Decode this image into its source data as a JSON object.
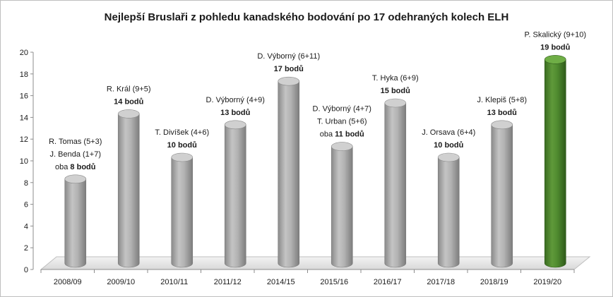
{
  "chart_data": {
    "type": "bar",
    "title": "Nejlepší Bruslaři z pohledu kanadského bodování po 17 odehraných kolech ELH",
    "xlabel": "",
    "ylabel": "",
    "ylim": [
      0,
      20
    ],
    "yticks": [
      "0",
      "2",
      "4",
      "6",
      "8",
      "10",
      "12",
      "14",
      "16",
      "18",
      "20"
    ],
    "categories": [
      "2008/09",
      "2009/10",
      "2010/11",
      "2011/12",
      "2014/15",
      "2015/16",
      "2016/17",
      "2017/18",
      "2018/19",
      "2019/20"
    ],
    "values": [
      8,
      14,
      10,
      13,
      17,
      11,
      15,
      10,
      13,
      19
    ],
    "colors": {
      "default": "#a6a6a6",
      "highlight": "#4f8a2f"
    },
    "highlight_index": 9,
    "grid": false,
    "data_labels": [
      {
        "lines": [
          {
            "parts": [
              {
                "t": "R. Tomas (5+3)",
                "b": false
              }
            ]
          },
          {
            "parts": [
              {
                "t": "J. Benda (1+7)",
                "b": false
              }
            ]
          },
          {
            "parts": [
              {
                "t": "oba ",
                "b": false
              },
              {
                "t": "8 bodů",
                "b": true
              }
            ]
          }
        ]
      },
      {
        "lines": [
          {
            "parts": [
              {
                "t": "R. Král (9+5)",
                "b": false
              }
            ]
          },
          {
            "parts": [
              {
                "t": "14 bodů",
                "b": true
              }
            ]
          }
        ]
      },
      {
        "lines": [
          {
            "parts": [
              {
                "t": "T. Divíšek (4+6)",
                "b": false
              }
            ]
          },
          {
            "parts": [
              {
                "t": "10 bodů",
                "b": true
              }
            ]
          }
        ]
      },
      {
        "lines": [
          {
            "parts": [
              {
                "t": "D. Výborný  (4+9)",
                "b": false
              }
            ]
          },
          {
            "parts": [
              {
                "t": "13 bodů",
                "b": true
              }
            ]
          }
        ]
      },
      {
        "lines": [
          {
            "parts": [
              {
                "t": "D. Výborný  (6+11)",
                "b": false
              }
            ]
          },
          {
            "parts": [
              {
                "t": "17 bodů",
                "b": true
              }
            ]
          }
        ]
      },
      {
        "lines": [
          {
            "parts": [
              {
                "t": "D. Výborný  (4+7)",
                "b": false
              }
            ]
          },
          {
            "parts": [
              {
                "t": "T. Urban (5+6)",
                "b": false
              }
            ]
          },
          {
            "parts": [
              {
                "t": "oba ",
                "b": false
              },
              {
                "t": "11 bodů",
                "b": true
              }
            ]
          }
        ]
      },
      {
        "lines": [
          {
            "parts": [
              {
                "t": "T. Hyka (6+9)",
                "b": false
              }
            ]
          },
          {
            "parts": [
              {
                "t": "15 bodů",
                "b": true
              }
            ]
          }
        ]
      },
      {
        "lines": [
          {
            "parts": [
              {
                "t": "J. Orsava  (6+4)",
                "b": false
              }
            ]
          },
          {
            "parts": [
              {
                "t": "10 bodů",
                "b": true
              }
            ]
          }
        ]
      },
      {
        "lines": [
          {
            "parts": [
              {
                "t": "J. Klepiš  (5+8)",
                "b": false
              }
            ]
          },
          {
            "parts": [
              {
                "t": "13 bodů",
                "b": true
              }
            ]
          }
        ]
      },
      {
        "lines": [
          {
            "parts": [
              {
                "t": "P. Skalický  (9+10)",
                "b": false
              }
            ]
          },
          {
            "parts": [
              {
                "t": "19 bodů",
                "b": true
              }
            ]
          }
        ]
      }
    ]
  }
}
